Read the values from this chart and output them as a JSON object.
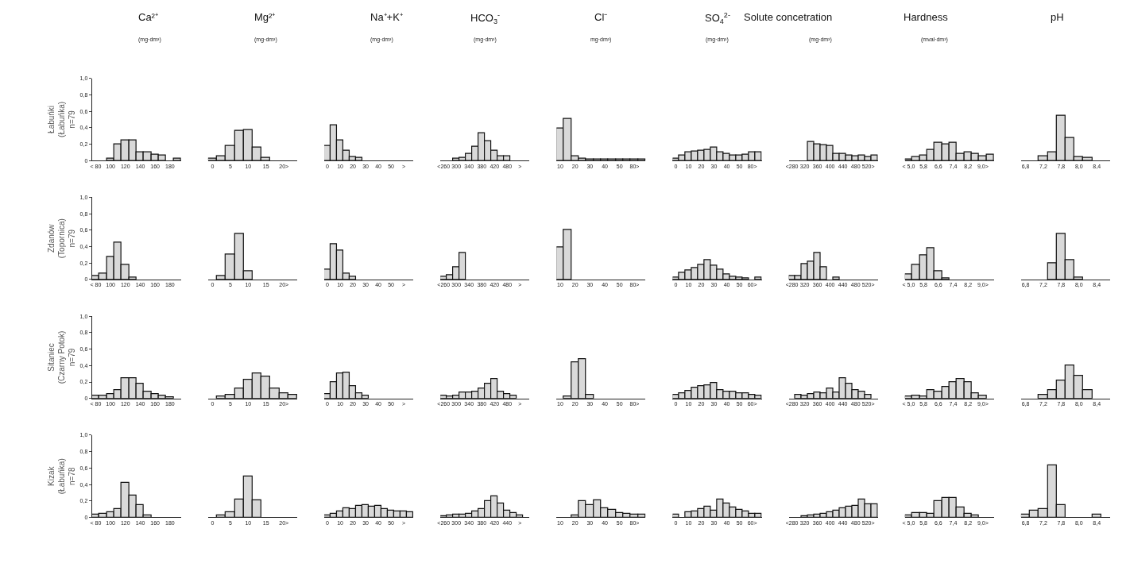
{
  "chart_data": [
    {
      "type": "bar",
      "title": "Ca²⁺",
      "subtitle": "(mg·dm³)",
      "ylabel": "Łabuńki\n(Łabuńka)\nn=79",
      "categories": [
        "< 80",
        null,
        "100",
        null,
        "120",
        null,
        "140",
        null,
        "160",
        null,
        "180",
        null
      ],
      "values": [
        0,
        0,
        0.02,
        0.2,
        0.25,
        0.25,
        0.1,
        0.1,
        0.07,
        0.06,
        0,
        0.02
      ],
      "color": "#d9d9d9",
      "ylim": [
        0,
        1
      ],
      "yticks": [
        0,
        {
          "value": 0.2,
          "label": "0,2"
        },
        {
          "value": 0.4,
          "label": "0,4"
        },
        {
          "value": 0.6,
          "label": "0,6"
        },
        {
          "value": 0.8,
          "label": "0,8"
        },
        {
          "value": 1,
          "label": "1,0"
        }
      ]
    },
    {
      "type": "bar",
      "title": "Mg²⁺",
      "subtitle": "(mg·dm³)",
      "categories": [
        "0",
        null,
        "5",
        null,
        "10",
        null,
        "15",
        null,
        "20>",
        null
      ],
      "values": [
        0.02,
        0.05,
        0.18,
        0.36,
        0.37,
        0.16,
        0.03,
        0,
        0,
        0
      ],
      "color": "#d9d9d9",
      "ylim": [
        0,
        1
      ],
      "tick_labels": "x"
    },
    {
      "type": "bar",
      "title": "Na⁺+K⁺",
      "subtitle": "(mg·dm³)",
      "categories": [
        "0",
        null,
        "10",
        null,
        "20",
        null,
        "30",
        null,
        "40",
        null,
        "50",
        null,
        ">",
        null
      ],
      "values": [
        0.18,
        0.43,
        0.25,
        0.12,
        0.04,
        0.03,
        0,
        0,
        0,
        0,
        0,
        0,
        0,
        0
      ],
      "color": "#d9d9d9",
      "ylim": [
        0,
        1
      ],
      "tick_labels": "x"
    },
    {
      "type": "bar",
      "title": "HCO$_{3}$$^{-}$",
      "subtitle": "(mg·dm³)",
      "categories": [
        "<260",
        null,
        "300",
        null,
        "340",
        null,
        "380",
        null,
        "420",
        null,
        "480",
        null,
        ">",
        null
      ],
      "values": [
        0,
        0,
        0.02,
        0.03,
        0.08,
        0.17,
        0.33,
        0.24,
        0.12,
        0.05,
        0.05,
        0,
        0,
        0
      ],
      "color": "#d9d9d9",
      "ylim": [
        0,
        1
      ],
      "tick_labels": "x"
    },
    {
      "type": "bar",
      "title": "Cl⁻",
      "subtitle": "mg·dm³)",
      "categories": [
        "10",
        null,
        "20",
        null,
        "30",
        null,
        "40",
        null,
        "50",
        null,
        "80>",
        null
      ],
      "values": [
        0.39,
        0.51,
        0.05,
        0.02,
        0.01,
        0.01,
        0.01,
        0.01,
        0.01,
        0.01,
        0.01,
        0.01
      ],
      "color": "#d9d9d9",
      "ylim": [
        0,
        1
      ],
      "tick_labels": "x"
    },
    {
      "type": "bar",
      "title": "SO$_{4}$$^{2-}$",
      "subtitle": "(mg·dm³)",
      "categories": [
        "0",
        null,
        "10",
        null,
        "20",
        null,
        "30",
        null,
        "40",
        null,
        "50",
        null,
        "80>",
        null
      ],
      "values": [
        0.02,
        0.06,
        0.1,
        0.11,
        0.12,
        0.13,
        0.16,
        0.1,
        0.08,
        0.06,
        0.06,
        0.07,
        0.1,
        0.1
      ],
      "color": "#d9d9d9",
      "ylim": [
        0,
        1
      ],
      "tick_labels": "x"
    },
    {
      "type": "bar",
      "title": "Solute concetration",
      "subtitle": "(mg·dm³)",
      "categories": [
        "<280",
        null,
        "320",
        null,
        "360",
        null,
        "400",
        null,
        "440",
        null,
        "480",
        null,
        "520>",
        null
      ],
      "values": [
        0,
        0,
        0,
        0.23,
        0.2,
        0.19,
        0.18,
        0.08,
        0.08,
        0.06,
        0.05,
        0.06,
        0.04,
        0.06
      ],
      "color": "#d9d9d9",
      "ylim": [
        0,
        1
      ],
      "tick_labels": "x"
    },
    {
      "type": "bar",
      "title": "Hardness",
      "subtitle": "(mval·dm³)",
      "categories": [
        "< 5,0",
        null,
        "5,8",
        null,
        "6,6",
        null,
        "7,4",
        null,
        "8,2",
        null,
        "9,0>",
        null
      ],
      "values": [
        0.01,
        0.04,
        0.06,
        0.13,
        0.22,
        0.2,
        0.22,
        0.08,
        0.1,
        0.08,
        0.05,
        0.07
      ],
      "color": "#d9d9d9",
      "ylim": [
        0,
        1
      ],
      "tick_labels": "x"
    },
    {
      "type": "bar",
      "title": "pH",
      "categories": [
        "6,8",
        null,
        "7,2",
        null,
        "7,8",
        null,
        "8,0",
        null,
        "8,4",
        null
      ],
      "values": [
        0,
        0,
        0.05,
        0.1,
        0.55,
        0.28,
        0.04,
        0.03,
        0,
        0
      ],
      "color": "#d9d9d9",
      "ylim": [
        0,
        1
      ],
      "tick_labels": "x"
    },
    {
      "type": "bar",
      "ylabel": "Zdanów\n(Topornica)\nn=79",
      "categories": [
        "< 80",
        null,
        "100",
        null,
        "120",
        null,
        "140",
        null,
        "160",
        null,
        "180",
        null
      ],
      "values": [
        0.04,
        0.07,
        0.28,
        0.45,
        0.18,
        0.02,
        0,
        0,
        0,
        0,
        0,
        0
      ],
      "color": "#d9d9d9",
      "ylim": [
        0,
        1
      ],
      "yticks": [
        0,
        {
          "value": 0.2,
          "label": "0,2"
        },
        {
          "value": 0.4,
          "label": "0,4"
        },
        {
          "value": 0.6,
          "label": "0,6"
        },
        {
          "value": 0.8,
          "label": "0,8"
        },
        {
          "value": 1,
          "label": "1,0"
        }
      ]
    },
    {
      "type": "bar",
      "categories": [
        "0",
        null,
        "5",
        null,
        "10",
        null,
        "15",
        null,
        "20>",
        null
      ],
      "values": [
        0,
        0.04,
        0.3,
        0.56,
        0.1,
        0,
        0,
        0,
        0,
        0
      ],
      "color": "#d9d9d9",
      "ylim": [
        0,
        1
      ],
      "tick_labels": "x"
    },
    {
      "type": "bar",
      "categories": [
        "0",
        null,
        "10",
        null,
        "20",
        null,
        "30",
        null,
        "40",
        null,
        "50",
        null,
        ">",
        null
      ],
      "values": [
        0.12,
        0.43,
        0.35,
        0.07,
        0.03,
        0,
        0,
        0,
        0,
        0,
        0,
        0,
        0,
        0
      ],
      "color": "#d9d9d9",
      "ylim": [
        0,
        1
      ],
      "tick_labels": "x"
    },
    {
      "type": "bar",
      "categories": [
        "<260",
        null,
        "300",
        null,
        "340",
        null,
        "380",
        null,
        "420",
        null,
        "480",
        null,
        ">",
        null
      ],
      "values": [
        0.03,
        0.05,
        0.15,
        0.32,
        0,
        0,
        0,
        0,
        0,
        0,
        0,
        0,
        0,
        0
      ],
      "color": "#d9d9d9",
      "ylim": [
        0,
        1
      ],
      "tick_labels": "x"
    },
    {
      "type": "bar",
      "categories": [
        "10",
        null,
        "20",
        null,
        "30",
        null,
        "40",
        null,
        "50",
        null,
        "80>",
        null
      ],
      "values": [
        0.39,
        0.6,
        0,
        0,
        0,
        0,
        0,
        0,
        0,
        0,
        0,
        0
      ],
      "color": "#d9d9d9",
      "ylim": [
        0,
        1
      ],
      "tick_labels": "x"
    },
    {
      "type": "bar",
      "categories": [
        "0",
        null,
        "10",
        null,
        "20",
        null,
        "30",
        null,
        "40",
        null,
        "50",
        null,
        "60>",
        null
      ],
      "values": [
        0.02,
        0.08,
        0.11,
        0.14,
        0.18,
        0.24,
        0.17,
        0.12,
        0.06,
        0.03,
        0.02,
        0.01,
        0,
        0.02
      ],
      "color": "#d9d9d9",
      "ylim": [
        0,
        1
      ],
      "tick_labels": "x"
    },
    {
      "type": "bar",
      "categories": [
        "<280",
        null,
        "320",
        null,
        "360",
        null,
        "400",
        null,
        "440",
        null,
        "480",
        null,
        "520>",
        null
      ],
      "values": [
        0.04,
        0.04,
        0.19,
        0.22,
        0.32,
        0.15,
        0,
        0.02,
        0,
        0,
        0,
        0,
        0,
        0
      ],
      "color": "#d9d9d9",
      "ylim": [
        0,
        1
      ],
      "tick_labels": "x"
    },
    {
      "type": "bar",
      "categories": [
        "< 5,0",
        null,
        "5,8",
        null,
        "6,6",
        null,
        "7,4",
        null,
        "8,2",
        null,
        "9,0>",
        null
      ],
      "values": [
        0.06,
        0.18,
        0.29,
        0.38,
        0.1,
        0.01,
        0,
        0,
        0,
        0,
        0,
        0
      ],
      "color": "#d9d9d9",
      "ylim": [
        0,
        1
      ],
      "tick_labels": "x"
    },
    {
      "type": "bar",
      "categories": [
        "6,8",
        null,
        "7,2",
        null,
        "7,8",
        null,
        "8,0",
        null,
        "8,4",
        null
      ],
      "values": [
        0,
        0,
        0,
        0.2,
        0.56,
        0.24,
        0.02,
        0,
        0,
        0
      ],
      "color": "#d9d9d9",
      "ylim": [
        0,
        1
      ],
      "tick_labels": "x"
    },
    {
      "type": "bar",
      "ylabel": "Sitaniec\n(Czarny Potok)\nn=79",
      "categories": [
        "< 80",
        null,
        "100",
        null,
        "120",
        null,
        "140",
        null,
        "160",
        null,
        "180",
        null
      ],
      "values": [
        0.03,
        0.03,
        0.05,
        0.1,
        0.25,
        0.25,
        0.18,
        0.08,
        0.05,
        0.03,
        0.01,
        0
      ],
      "color": "#d9d9d9",
      "ylim": [
        0,
        1
      ],
      "yticks": [
        0,
        {
          "value": 0.2,
          "label": "0,2"
        },
        {
          "value": 0.4,
          "label": "0,4"
        },
        {
          "value": 0.6,
          "label": "0,6"
        },
        {
          "value": 0.8,
          "label": "0,8"
        },
        {
          "value": 1,
          "label": "1,0"
        }
      ]
    },
    {
      "type": "bar",
      "categories": [
        "0",
        null,
        "5",
        null,
        "10",
        null,
        "15",
        null,
        "20>",
        null
      ],
      "values": [
        0,
        0.02,
        0.04,
        0.12,
        0.23,
        0.3,
        0.27,
        0.12,
        0.06,
        0.04
      ],
      "color": "#d9d9d9",
      "ylim": [
        0,
        1
      ],
      "tick_labels": "x"
    },
    {
      "type": "bar",
      "categories": [
        "0",
        null,
        "10",
        null,
        "20",
        null,
        "30",
        null,
        "40",
        null,
        "50",
        null,
        ">",
        null
      ],
      "values": [
        0.05,
        0.2,
        0.3,
        0.31,
        0.15,
        0.06,
        0.03,
        0,
        0,
        0,
        0,
        0,
        0,
        0
      ],
      "color": "#d9d9d9",
      "ylim": [
        0,
        1
      ],
      "tick_labels": "x"
    },
    {
      "type": "bar",
      "categories": [
        "<260",
        null,
        "300",
        null,
        "340",
        null,
        "380",
        null,
        "420",
        null,
        "480",
        null,
        ">",
        null
      ],
      "values": [
        0.03,
        0.02,
        0.03,
        0.07,
        0.07,
        0.08,
        0.12,
        0.18,
        0.24,
        0.08,
        0.05,
        0.03,
        0,
        0
      ],
      "color": "#d9d9d9",
      "ylim": [
        0,
        1
      ],
      "tick_labels": "x"
    },
    {
      "type": "bar",
      "categories": [
        "10",
        null,
        "20",
        null,
        "30",
        null,
        "40",
        null,
        "50",
        null,
        "80>",
        null
      ],
      "values": [
        0,
        0.02,
        0.44,
        0.48,
        0.04,
        0,
        0,
        0,
        0,
        0,
        0,
        0
      ],
      "color": "#d9d9d9",
      "ylim": [
        0,
        1
      ],
      "tick_labels": "x"
    },
    {
      "type": "bar",
      "categories": [
        "0",
        null,
        "10",
        null,
        "20",
        null,
        "30",
        null,
        "40",
        null,
        "50",
        null,
        "60>",
        null
      ],
      "values": [
        0.04,
        0.06,
        0.09,
        0.13,
        0.15,
        0.16,
        0.19,
        0.1,
        0.08,
        0.08,
        0.06,
        0.06,
        0.04,
        0.03
      ],
      "color": "#d9d9d9",
      "ylim": [
        0,
        1
      ],
      "tick_labels": "x"
    },
    {
      "type": "bar",
      "categories": [
        "<280",
        null,
        "320",
        null,
        "360",
        null,
        "400",
        null,
        "440",
        null,
        "480",
        null,
        "520>",
        null
      ],
      "values": [
        0,
        0.04,
        0.03,
        0.05,
        0.07,
        0.06,
        0.12,
        0.07,
        0.25,
        0.18,
        0.1,
        0.08,
        0.04,
        0
      ],
      "color": "#d9d9d9",
      "ylim": [
        0,
        1
      ],
      "tick_labels": "x"
    },
    {
      "type": "bar",
      "categories": [
        "< 5,0",
        null,
        "5,8",
        null,
        "6,6",
        null,
        "7,4",
        null,
        "8,2",
        null,
        "9,0>",
        null
      ],
      "values": [
        0.02,
        0.03,
        0.02,
        0.1,
        0.08,
        0.14,
        0.2,
        0.24,
        0.2,
        0.06,
        0.03,
        0
      ],
      "color": "#d9d9d9",
      "ylim": [
        0,
        1
      ],
      "tick_labels": "x"
    },
    {
      "type": "bar",
      "categories": [
        "6,8",
        null,
        "7,2",
        null,
        "7,8",
        null,
        "8,0",
        null,
        "8,4",
        null
      ],
      "values": [
        0,
        0,
        0.04,
        0.1,
        0.22,
        0.4,
        0.28,
        0.1,
        0,
        0
      ],
      "color": "#d9d9d9",
      "ylim": [
        0,
        1
      ],
      "tick_labels": "x"
    },
    {
      "type": "bar",
      "ylabel": "Kizak\n(Łabuńka)\nn=78",
      "categories": [
        "< 80",
        null,
        "100",
        null,
        "120",
        null,
        "140",
        null,
        "160",
        null,
        "180",
        null
      ],
      "values": [
        0.03,
        0.04,
        0.06,
        0.1,
        0.42,
        0.27,
        0.15,
        0.02,
        0,
        0,
        0,
        0
      ],
      "color": "#d9d9d9",
      "ylim": [
        0,
        1
      ],
      "yticks": [
        0,
        {
          "value": 0.2,
          "label": "0,2"
        },
        {
          "value": 0.4,
          "label": "0,4"
        },
        {
          "value": 0.6,
          "label": "0,6"
        },
        {
          "value": 0.8,
          "label": "0,8"
        },
        {
          "value": 1,
          "label": "1,0"
        }
      ]
    },
    {
      "type": "bar",
      "categories": [
        "0",
        null,
        "5",
        null,
        "10",
        null,
        "15",
        null,
        "20>",
        null
      ],
      "values": [
        0,
        0.02,
        0.06,
        0.22,
        0.5,
        0.21,
        0,
        0,
        0,
        0
      ],
      "color": "#d9d9d9",
      "ylim": [
        0,
        1
      ],
      "tick_labels": "x"
    },
    {
      "type": "bar",
      "categories": [
        "0",
        null,
        "10",
        null,
        "20",
        null,
        "30",
        null,
        "40",
        null,
        "50",
        null,
        ">",
        null
      ],
      "values": [
        0.02,
        0.04,
        0.07,
        0.11,
        0.1,
        0.14,
        0.15,
        0.13,
        0.14,
        0.1,
        0.08,
        0.07,
        0.07,
        0.06
      ],
      "color": "#d9d9d9",
      "ylim": [
        0,
        1
      ],
      "tick_labels": "x"
    },
    {
      "type": "bar",
      "categories": [
        "<260",
        null,
        "300",
        null,
        "340",
        null,
        "380",
        null,
        "420",
        null,
        "440",
        null,
        ">",
        null
      ],
      "values": [
        0.01,
        0.02,
        0.03,
        0.03,
        0.04,
        0.07,
        0.1,
        0.2,
        0.26,
        0.17,
        0.08,
        0.05,
        0.02,
        0
      ],
      "color": "#d9d9d9",
      "ylim": [
        0,
        1
      ],
      "tick_labels": "x"
    },
    {
      "type": "bar",
      "categories": [
        "10",
        null,
        "20",
        null,
        "30",
        null,
        "40",
        null,
        "50",
        null,
        "80>",
        null
      ],
      "values": [
        0,
        0,
        0.02,
        0.2,
        0.15,
        0.21,
        0.11,
        0.09,
        0.05,
        0.04,
        0.03,
        0.03
      ],
      "color": "#d9d9d9",
      "ylim": [
        0,
        1
      ],
      "tick_labels": "x"
    },
    {
      "type": "bar",
      "categories": [
        "0",
        null,
        "10",
        null,
        "20",
        null,
        "30",
        null,
        "40",
        null,
        "50",
        null,
        "60>",
        null
      ],
      "values": [
        0.03,
        0,
        0.06,
        0.07,
        0.1,
        0.13,
        0.08,
        0.22,
        0.17,
        0.12,
        0.09,
        0.07,
        0.04,
        0.04
      ],
      "color": "#d9d9d9",
      "ylim": [
        0,
        1
      ],
      "tick_labels": "x"
    },
    {
      "type": "bar",
      "categories": [
        "<280",
        null,
        "320",
        null,
        "360",
        null,
        "400",
        null,
        "440",
        null,
        "480",
        null,
        "520>",
        null
      ],
      "values": [
        0,
        0,
        0.01,
        0.02,
        0.03,
        0.04,
        0.06,
        0.08,
        0.11,
        0.13,
        0.14,
        0.22,
        0.16,
        0.16
      ],
      "color": "#d9d9d9",
      "ylim": [
        0,
        1
      ],
      "tick_labels": "x"
    },
    {
      "type": "bar",
      "categories": [
        "< 5,0",
        null,
        "5,8",
        null,
        "6,6",
        null,
        "7,4",
        null,
        "8,2",
        null,
        "9,0>",
        null
      ],
      "values": [
        0.02,
        0.05,
        0.05,
        0.04,
        0.2,
        0.24,
        0.24,
        0.12,
        0.04,
        0.02,
        0,
        0
      ],
      "color": "#d9d9d9",
      "ylim": [
        0,
        1
      ],
      "tick_labels": "x"
    },
    {
      "type": "bar",
      "categories": [
        "6,8",
        null,
        "7,2",
        null,
        "7,8",
        null,
        "8,0",
        null,
        "8,4",
        null
      ],
      "values": [
        0.03,
        0.08,
        0.1,
        0.63,
        0.15,
        0,
        0,
        0,
        0.03,
        0
      ],
      "color": "#d9d9d9",
      "ylim": [
        0,
        1
      ],
      "tick_labels": "x"
    }
  ]
}
